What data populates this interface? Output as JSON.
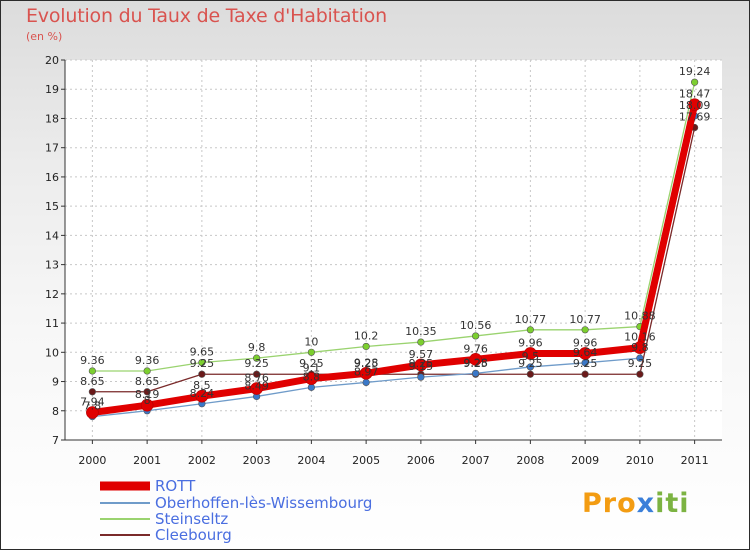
{
  "chart_data": {
    "type": "line",
    "title": "Evolution du Taux de Taxe d'Habitation",
    "subtitle": "(en %)",
    "xlabel": "",
    "ylabel": "",
    "categories": [
      "2000",
      "2001",
      "2002",
      "2003",
      "2004",
      "2005",
      "2006",
      "2007",
      "2008",
      "2009",
      "2010",
      "2011"
    ],
    "ylim": [
      7,
      20
    ],
    "yticks": [
      7,
      8,
      9,
      10,
      11,
      12,
      13,
      14,
      15,
      16,
      17,
      18,
      19,
      20
    ],
    "grid": true,
    "legend_position": "bottom-left",
    "series": [
      {
        "name": "ROTT",
        "color": "#e00000",
        "marker_color": "#e00000",
        "values": [
          7.94,
          8.19,
          8.5,
          8.76,
          9.1,
          9.28,
          9.57,
          9.76,
          9.96,
          9.96,
          10.16,
          18.47
        ],
        "labels": [
          "7.94",
          "8.19",
          "8.5",
          "8.76",
          "9.1",
          "9.28",
          "9.57",
          "9.76",
          "9.96",
          "9.96",
          "10.16",
          "18.47"
        ]
      },
      {
        "name": "Oberhoffen-lès-Wissembourg",
        "color": "#6f9bc9",
        "marker_color": "#3a78c8",
        "values": [
          7.8,
          8.0,
          8.24,
          8.49,
          8.8,
          8.97,
          9.15,
          9.28,
          9.5,
          9.64,
          9.8,
          18.09
        ],
        "labels": [
          "7.8",
          "8",
          "8.24",
          "8.49",
          "8.8",
          "8.97",
          "9.15",
          "9.28",
          "9.5",
          "9.64",
          "9.8",
          "18.09"
        ]
      },
      {
        "name": "Steinseltz",
        "color": "#9ad36f",
        "marker_color": "#7ccf2f",
        "values": [
          9.36,
          9.36,
          9.65,
          9.8,
          10.0,
          10.2,
          10.35,
          10.56,
          10.77,
          10.77,
          10.88,
          19.24
        ],
        "labels": [
          "9.36",
          "9.36",
          "9.65",
          "9.8",
          "10",
          "10.2",
          "10.35",
          "10.56",
          "10.77",
          "10.77",
          "10.88",
          "19.24"
        ]
      },
      {
        "name": "Cleebourg",
        "color": "#7a2a2a",
        "marker_color": "#6b1a1a",
        "values": [
          8.65,
          8.65,
          9.25,
          9.25,
          9.25,
          9.25,
          9.25,
          9.25,
          9.25,
          9.25,
          9.25,
          17.69
        ],
        "labels": [
          "8.65",
          "8.65",
          "9.25",
          "9.25",
          "9.25",
          "9.25",
          "9.25",
          "9.25",
          "9.25",
          "9.25",
          "9.25",
          "17.69"
        ]
      }
    ]
  },
  "brand": {
    "p1": "Pro",
    "p2": "x",
    "p3": "iti"
  }
}
